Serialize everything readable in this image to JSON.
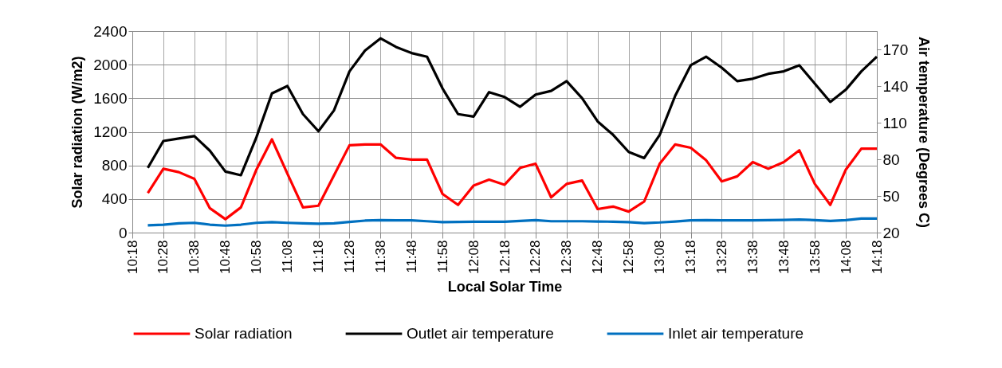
{
  "chart_data": {
    "type": "line",
    "xlabel": "Local Solar Time",
    "ylabel": "Solar radiation (W/m2)",
    "y2label": "Air temperature (Degrees C)",
    "categories": [
      "10:18",
      null,
      "10:28",
      null,
      "10:38",
      null,
      "10:48",
      null,
      "10:58",
      null,
      "11:08",
      null,
      "11:18",
      null,
      "11:28",
      null,
      "11:38",
      null,
      "11:48",
      null,
      "11:58",
      null,
      "12:08",
      null,
      "12:18",
      null,
      "12:28",
      null,
      "12:38",
      null,
      "12:48",
      null,
      "12:58",
      null,
      "13:08",
      null,
      "13:18",
      null,
      "13:28",
      null,
      "13:38",
      null,
      "13:48",
      null,
      "13:58",
      null,
      "14:08",
      null,
      "14:18"
    ],
    "series": [
      {
        "name": "Solar radiation",
        "color": "#ff0000",
        "values": [
          null,
          470,
          760,
          720,
          640,
          290,
          160,
          300,
          750,
          1110,
          700,
          300,
          320,
          680,
          1040,
          1050,
          1050,
          890,
          870,
          870,
          460,
          330,
          560,
          630,
          570,
          770,
          820,
          420,
          580,
          620,
          280,
          310,
          250,
          370,
          820,
          1050,
          1010,
          860,
          610,
          670,
          840,
          760,
          840,
          980,
          580,
          330,
          750,
          1000,
          1000
        ]
      },
      {
        "name": "Outlet air temperature",
        "color": "#000000",
        "axis": "y2",
        "values": [
          null,
          73,
          95,
          97,
          99,
          87,
          70,
          67,
          98,
          134,
          140,
          117,
          103,
          120,
          152,
          169,
          179,
          172,
          167,
          164,
          138,
          117,
          115,
          135,
          131,
          123,
          133,
          136,
          144,
          130,
          111,
          100,
          86,
          81,
          100,
          132,
          157,
          164,
          155,
          144,
          146,
          150,
          152,
          157,
          142,
          127,
          137,
          152,
          164
        ]
      },
      {
        "name": "Inlet air temperature",
        "color": "#0070c0",
        "axis": "y2",
        "values": [
          null,
          26,
          26.5,
          27.6,
          28,
          26.5,
          25.7,
          26.5,
          28,
          28.5,
          28,
          27.6,
          27.2,
          27.6,
          28.7,
          29.8,
          30.2,
          30,
          30,
          29.3,
          28.5,
          28.7,
          28.9,
          28.9,
          28.9,
          29.6,
          30.2,
          29.3,
          29.3,
          29.3,
          29.1,
          28.9,
          28.5,
          27.8,
          28.3,
          29.1,
          30,
          30.2,
          30,
          30,
          30,
          30.2,
          30.4,
          30.7,
          30.2,
          29.6,
          30.2,
          31.5,
          31.5
        ]
      }
    ],
    "ylim": [
      0,
      2400
    ],
    "yticks": [
      0,
      400,
      800,
      1200,
      1600,
      2000,
      2400
    ],
    "y2lim": [
      20,
      185
    ],
    "y2ticks": [
      20,
      50,
      80,
      110,
      140,
      170
    ],
    "grid": true,
    "legend": "bottom"
  }
}
